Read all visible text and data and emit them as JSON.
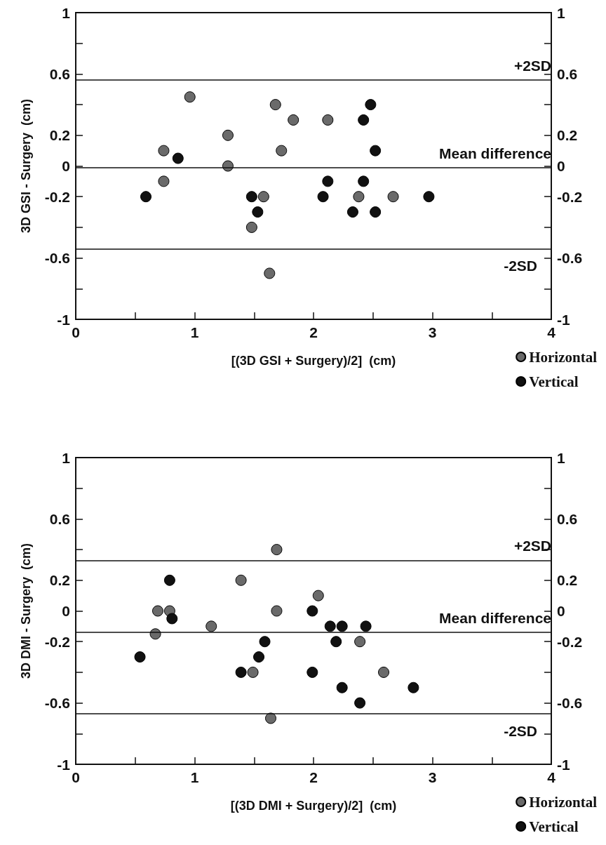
{
  "chart_data": [
    {
      "type": "scatter",
      "xlabel": "[(3D GSI + Surgery)/2]  (cm)",
      "ylabel": "3D GSI - Surgery  (cm)",
      "xlim": [
        0,
        4
      ],
      "xticks": [
        0,
        {
          "value": 0.5,
          "label": null
        },
        1,
        {
          "value": 1.5,
          "label": null
        },
        2,
        {
          "value": 2.5,
          "label": null
        },
        3,
        {
          "value": 3.5,
          "label": null
        },
        4
      ],
      "ylim": [
        -1,
        1
      ],
      "yticks": [
        -1,
        {
          "value": -0.8,
          "label": null
        },
        -0.6,
        {
          "value": -0.4,
          "label": null
        },
        -0.2,
        0,
        0.2,
        {
          "value": 0.4,
          "label": null
        },
        0.6,
        {
          "value": 0.8,
          "label": null
        },
        1
      ],
      "y2lim": [
        -1,
        1
      ],
      "y2ticks": [
        -1,
        {
          "value": -0.8,
          "label": null
        },
        -0.6,
        {
          "value": -0.4,
          "label": null
        },
        -0.2,
        0,
        0.2,
        {
          "value": 0.4,
          "label": null
        },
        0.6,
        {
          "value": 0.8,
          "label": null
        },
        1
      ],
      "grid": false,
      "legend": "bottom right",
      "marker": "circle",
      "ref_lines": [
        {
          "axis": "y",
          "value": 0.56,
          "label": "+2SD"
        },
        {
          "axis": "y",
          "value": -0.01,
          "label": "Mean difference"
        },
        {
          "axis": "y",
          "value": -0.54,
          "label": "-2SD"
        }
      ],
      "series": [
        {
          "name": "Horizontal",
          "color": "#6a6a6a",
          "x": [
            0.96,
            0.74,
            0.74,
            1.28,
            1.28,
            1.68,
            1.83,
            1.73,
            1.58,
            1.48,
            1.63,
            2.12,
            2.38,
            2.67
          ],
          "values": [
            0.45,
            0.1,
            -0.1,
            0.2,
            0,
            0.4,
            0.3,
            0.1,
            -0.2,
            -0.4,
            -0.7,
            0.3,
            -0.2,
            -0.2
          ]
        },
        {
          "name": "Vertical",
          "color": "#111111",
          "x": [
            0.59,
            0.86,
            1.48,
            1.53,
            2.08,
            2.12,
            2.48,
            2.42,
            2.52,
            2.42,
            2.97,
            2.33,
            2.52
          ],
          "values": [
            -0.2,
            0.05,
            -0.2,
            -0.3,
            -0.2,
            -0.1,
            0.4,
            0.3,
            0.1,
            -0.1,
            -0.2,
            -0.3,
            -0.3
          ]
        }
      ]
    },
    {
      "type": "scatter",
      "xlabel": "[(3D DMI + Surgery)/2]  (cm)",
      "ylabel": "3D DMI - Surgery  (cm)",
      "xlim": [
        0,
        4
      ],
      "xticks": [
        0,
        {
          "value": 0.5,
          "label": null
        },
        1,
        {
          "value": 1.5,
          "label": null
        },
        2,
        {
          "value": 2.5,
          "label": null
        },
        3,
        {
          "value": 3.5,
          "label": null
        },
        4
      ],
      "ylim": [
        -1,
        1
      ],
      "yticks": [
        -1,
        {
          "value": -0.8,
          "label": null
        },
        -0.6,
        {
          "value": -0.4,
          "label": null
        },
        -0.2,
        0,
        0.2,
        {
          "value": 0.4,
          "label": null
        },
        0.6,
        {
          "value": 0.8,
          "label": null
        },
        1
      ],
      "y2lim": [
        -1,
        1
      ],
      "y2ticks": [
        -1,
        {
          "value": -0.8,
          "label": null
        },
        -0.6,
        {
          "value": -0.4,
          "label": null
        },
        -0.2,
        0,
        0.2,
        {
          "value": 0.4,
          "label": null
        },
        0.6,
        {
          "value": 0.8,
          "label": null
        },
        1
      ],
      "grid": false,
      "legend": "bottom right",
      "marker": "circle",
      "ref_lines": [
        {
          "axis": "y",
          "value": 0.33,
          "label": "+2SD"
        },
        {
          "axis": "y",
          "value": -0.14,
          "label": "Mean difference"
        },
        {
          "axis": "y",
          "value": -0.67,
          "label": "-2SD"
        }
      ],
      "series": [
        {
          "name": "Horizontal",
          "color": "#6a6a6a",
          "x": [
            1.69,
            0.69,
            0.79,
            0.67,
            1.14,
            1.39,
            1.69,
            2.04,
            1.49,
            1.64,
            2.39,
            2.59
          ],
          "values": [
            0.4,
            0,
            0,
            -0.15,
            -0.1,
            0.2,
            0,
            0.1,
            -0.4,
            -0.7,
            -0.2,
            -0.4
          ]
        },
        {
          "name": "Vertical",
          "color": "#111111",
          "x": [
            0.79,
            0.81,
            0.54,
            1.39,
            1.54,
            1.59,
            1.99,
            1.99,
            2.14,
            2.24,
            2.19,
            2.24,
            2.44,
            2.39,
            2.84
          ],
          "values": [
            0.2,
            -0.05,
            -0.3,
            -0.4,
            -0.3,
            -0.2,
            0,
            -0.4,
            -0.1,
            -0.1,
            -0.2,
            -0.5,
            -0.1,
            -0.6,
            -0.5
          ]
        }
      ]
    }
  ]
}
